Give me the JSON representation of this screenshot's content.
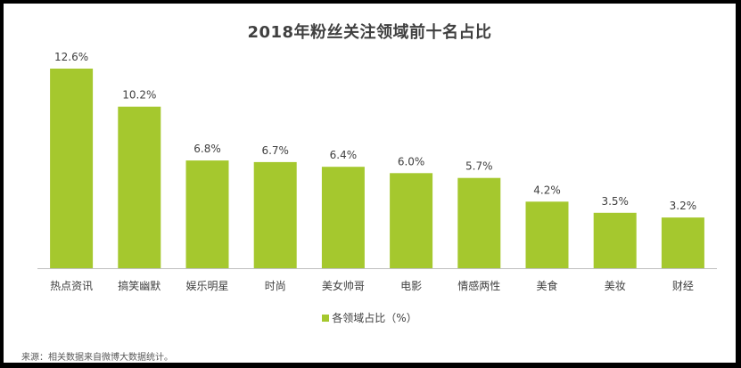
{
  "colors": {
    "bar": "#a5c82e",
    "axis": "#bfbfbf",
    "text": "#404040",
    "frame": "#000000",
    "background": "#ffffff"
  },
  "chart_data": {
    "type": "bar",
    "title": "2018年粉丝关注领域前十名占比",
    "categories": [
      "热点资讯",
      "搞笑幽默",
      "娱乐明星",
      "时尚",
      "美女帅哥",
      "电影",
      "情感两性",
      "美食",
      "美妆",
      "财经"
    ],
    "series": [
      {
        "name": "各领域占比（%）",
        "values": [
          12.6,
          10.2,
          6.8,
          6.7,
          6.4,
          6.0,
          5.7,
          4.2,
          3.5,
          3.2
        ]
      }
    ],
    "data_labels": [
      "12.6%",
      "10.2%",
      "6.8%",
      "6.7%",
      "6.4%",
      "6.0%",
      "5.7%",
      "4.2%",
      "3.5%",
      "3.2%"
    ],
    "ylim": [
      0,
      12.6
    ],
    "grid": false,
    "legend_position": "bottom-center"
  },
  "source_note": "来源：相关数据来自微博大数据统计。"
}
